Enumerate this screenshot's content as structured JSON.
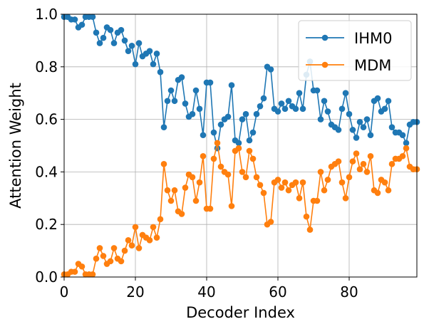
{
  "chart_data": {
    "type": "line",
    "xlabel": "Decoder Index",
    "ylabel": "Attention Weight",
    "xlim": [
      0,
      99
    ],
    "ylim": [
      0.0,
      1.0
    ],
    "x_ticks": [
      0,
      20,
      40,
      60,
      80
    ],
    "x_tick_labels": [
      "0",
      "20",
      "40",
      "60",
      "80"
    ],
    "y_ticks": [
      0.0,
      0.2,
      0.4,
      0.6,
      0.8,
      1.0
    ],
    "y_tick_labels": [
      "0.0",
      "0.2",
      "0.4",
      "0.6",
      "0.8",
      "1.0"
    ],
    "grid": true,
    "legend_position": "top-right",
    "x": [
      0,
      1,
      2,
      3,
      4,
      5,
      6,
      7,
      8,
      9,
      10,
      11,
      12,
      13,
      14,
      15,
      16,
      17,
      18,
      19,
      20,
      21,
      22,
      23,
      24,
      25,
      26,
      27,
      28,
      29,
      30,
      31,
      32,
      33,
      34,
      35,
      36,
      37,
      38,
      39,
      40,
      41,
      42,
      43,
      44,
      45,
      46,
      47,
      48,
      49,
      50,
      51,
      52,
      53,
      54,
      55,
      56,
      57,
      58,
      59,
      60,
      61,
      62,
      63,
      64,
      65,
      66,
      67,
      68,
      69,
      70,
      71,
      72,
      73,
      74,
      75,
      76,
      77,
      78,
      79,
      80,
      81,
      82,
      83,
      84,
      85,
      86,
      87,
      88,
      89,
      90,
      91,
      92,
      93,
      94,
      95,
      96,
      97,
      98,
      99
    ],
    "series": [
      {
        "name": "IHM0",
        "color": "#1f77b4",
        "values": [
          0.99,
          0.99,
          0.98,
          0.98,
          0.95,
          0.96,
          0.99,
          0.99,
          0.99,
          0.93,
          0.89,
          0.91,
          0.95,
          0.94,
          0.89,
          0.93,
          0.94,
          0.9,
          0.86,
          0.88,
          0.81,
          0.89,
          0.84,
          0.85,
          0.86,
          0.81,
          0.85,
          0.78,
          0.57,
          0.67,
          0.71,
          0.67,
          0.75,
          0.76,
          0.66,
          0.61,
          0.62,
          0.71,
          0.64,
          0.54,
          0.74,
          0.74,
          0.55,
          0.49,
          0.58,
          0.6,
          0.61,
          0.73,
          0.52,
          0.51,
          0.6,
          0.62,
          0.52,
          0.55,
          0.62,
          0.65,
          0.68,
          0.8,
          0.79,
          0.64,
          0.63,
          0.66,
          0.64,
          0.67,
          0.65,
          0.64,
          0.7,
          0.64,
          0.77,
          0.82,
          0.71,
          0.71,
          0.6,
          0.67,
          0.63,
          0.58,
          0.57,
          0.56,
          0.64,
          0.7,
          0.62,
          0.56,
          0.53,
          0.59,
          0.57,
          0.6,
          0.54,
          0.67,
          0.68,
          0.63,
          0.64,
          0.67,
          0.57,
          0.55,
          0.55,
          0.54,
          0.51,
          0.58,
          0.59,
          0.59
        ]
      },
      {
        "name": "MDM",
        "color": "#ff7f0e",
        "values": [
          0.01,
          0.01,
          0.02,
          0.02,
          0.05,
          0.04,
          0.01,
          0.01,
          0.01,
          0.07,
          0.11,
          0.08,
          0.05,
          0.06,
          0.11,
          0.07,
          0.06,
          0.1,
          0.14,
          0.12,
          0.19,
          0.11,
          0.16,
          0.15,
          0.14,
          0.19,
          0.15,
          0.22,
          0.43,
          0.33,
          0.29,
          0.33,
          0.25,
          0.24,
          0.34,
          0.39,
          0.38,
          0.29,
          0.36,
          0.46,
          0.26,
          0.26,
          0.45,
          0.51,
          0.42,
          0.4,
          0.39,
          0.27,
          0.48,
          0.49,
          0.4,
          0.38,
          0.48,
          0.45,
          0.38,
          0.35,
          0.32,
          0.2,
          0.21,
          0.36,
          0.37,
          0.34,
          0.36,
          0.33,
          0.35,
          0.36,
          0.3,
          0.36,
          0.23,
          0.18,
          0.29,
          0.29,
          0.4,
          0.33,
          0.37,
          0.42,
          0.43,
          0.44,
          0.36,
          0.3,
          0.38,
          0.44,
          0.47,
          0.41,
          0.43,
          0.4,
          0.46,
          0.33,
          0.32,
          0.37,
          0.36,
          0.33,
          0.43,
          0.45,
          0.45,
          0.46,
          0.49,
          0.42,
          0.41,
          0.41
        ]
      }
    ]
  }
}
